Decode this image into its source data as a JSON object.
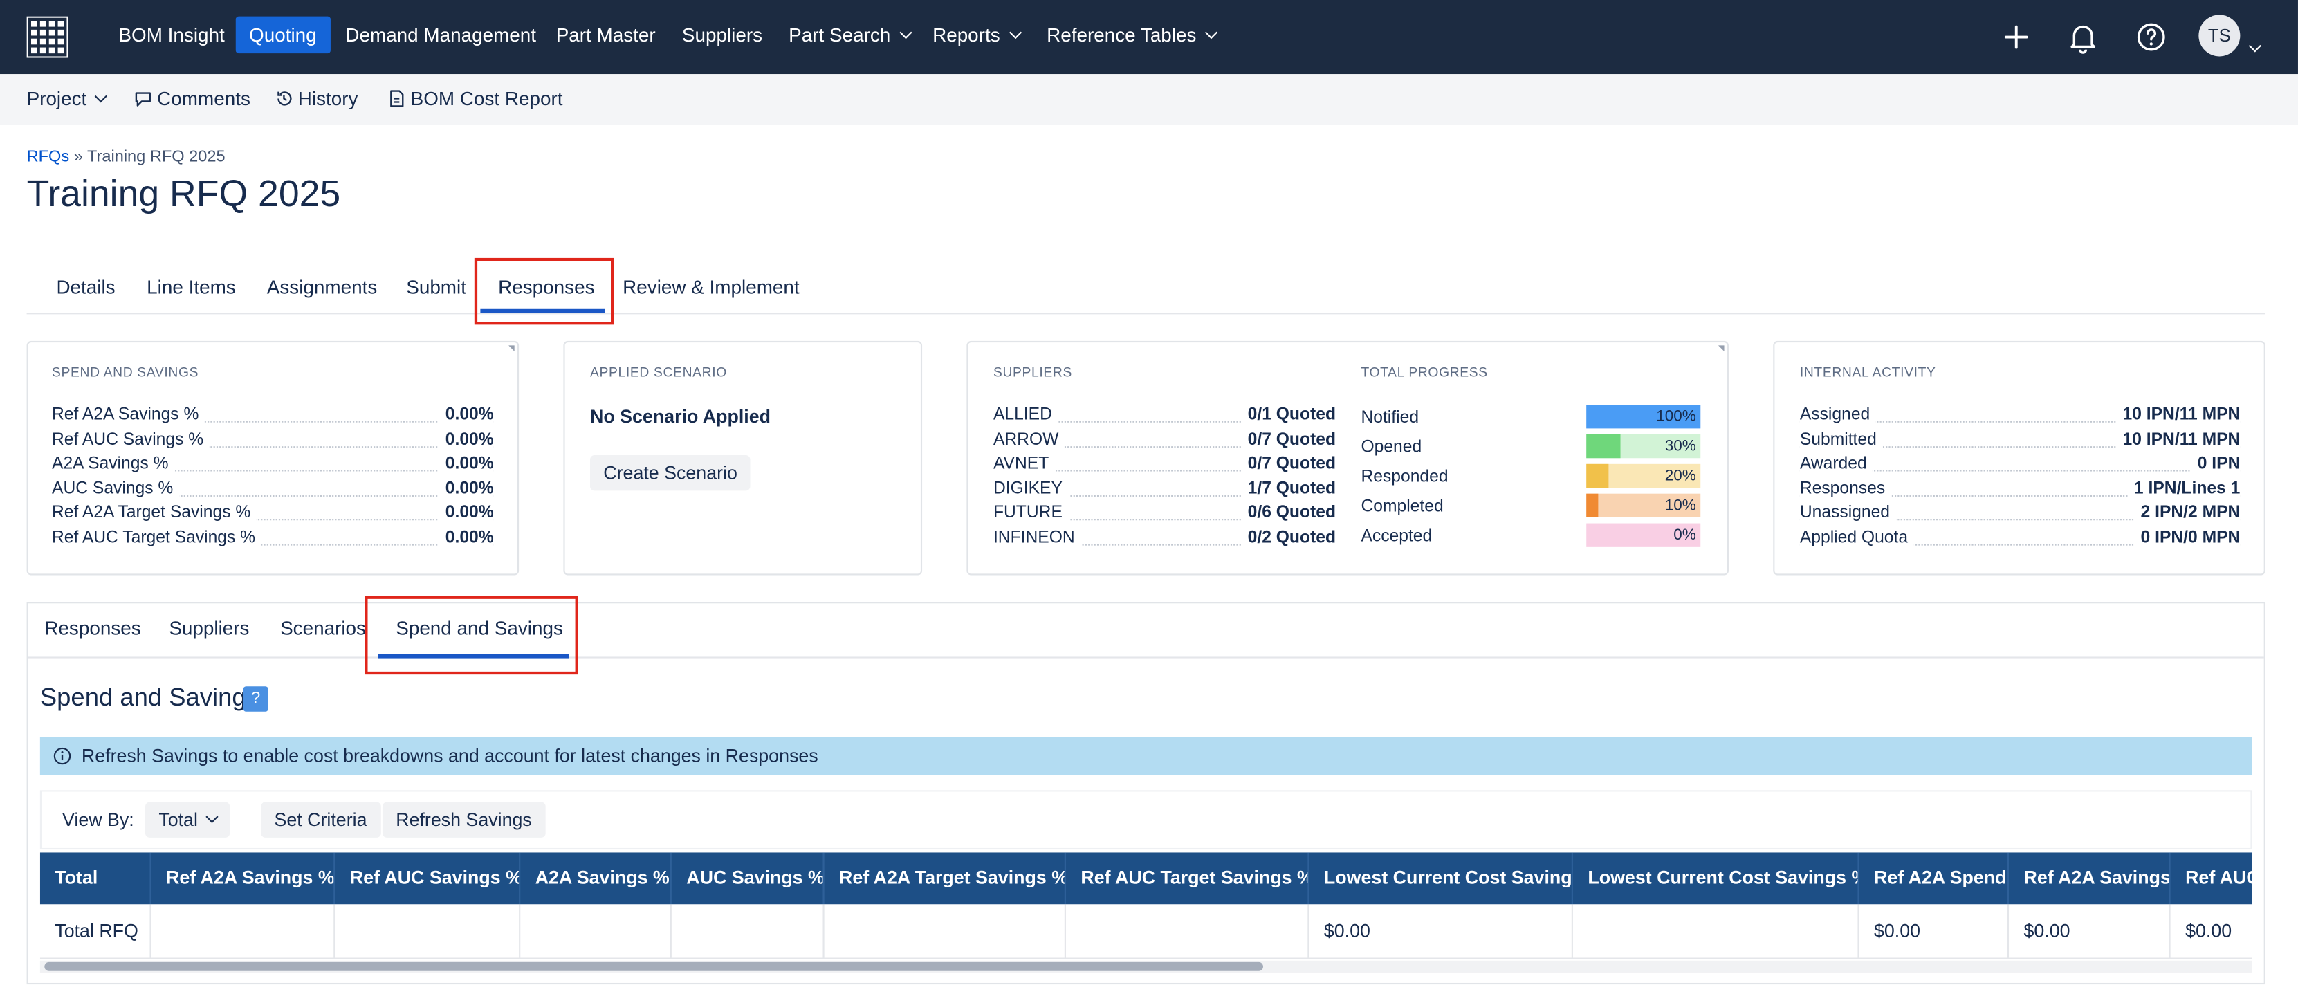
{
  "topnav": {
    "items": [
      "BOM Insight",
      "Quoting",
      "Demand Management",
      "Part Master",
      "Suppliers",
      "Part Search",
      "Reports",
      "Reference Tables"
    ],
    "active": "Quoting",
    "avatar": "TS",
    "icons": [
      "apps-grid-icon",
      "plus-icon",
      "bell-icon",
      "help-icon"
    ]
  },
  "subnav": {
    "project": "Project",
    "comments": "Comments",
    "history": "History",
    "bom_cost_report": "BOM Cost Report"
  },
  "breadcrumb": {
    "root": "RFQs",
    "sep": "»",
    "current": "Training RFQ 2025"
  },
  "page_title": "Training RFQ 2025",
  "page_tabs": [
    "Details",
    "Line Items",
    "Assignments",
    "Submit",
    "Responses",
    "Review & Implement"
  ],
  "spend": {
    "heading": "SPEND AND SAVINGS",
    "rows": [
      {
        "label": "Ref A2A Savings %",
        "value": "0.00%"
      },
      {
        "label": "Ref AUC Savings %",
        "value": "0.00%"
      },
      {
        "label": "A2A Savings %",
        "value": "0.00%"
      },
      {
        "label": "AUC Savings %",
        "value": "0.00%"
      },
      {
        "label": "Ref A2A Target Savings %",
        "value": "0.00%"
      },
      {
        "label": "Ref AUC Target Savings %",
        "value": "0.00%"
      }
    ]
  },
  "scenario": {
    "heading": "APPLIED SCENARIO",
    "status": "No Scenario Applied",
    "button": "Create Scenario"
  },
  "suppliers": {
    "heading": "SUPPLIERS",
    "rows": [
      {
        "name": "ALLIED",
        "value": "0/1 Quoted"
      },
      {
        "name": "ARROW",
        "value": "0/7 Quoted"
      },
      {
        "name": "AVNET",
        "value": "0/7 Quoted"
      },
      {
        "name": "DIGIKEY",
        "value": "1/7 Quoted"
      },
      {
        "name": "FUTURE",
        "value": "0/6 Quoted"
      },
      {
        "name": "INFINEON",
        "value": "0/2 Quoted"
      }
    ]
  },
  "progress": {
    "heading": "TOTAL PROGRESS",
    "rows": [
      {
        "label": "Notified",
        "pct": "100%",
        "value": 100,
        "color": "#4a9cf5",
        "bg": "#cfe3fb"
      },
      {
        "label": "Opened",
        "pct": "30%",
        "value": 30,
        "color": "#6fd77b",
        "bg": "#d2f3d6"
      },
      {
        "label": "Responded",
        "pct": "20%",
        "value": 20,
        "color": "#f1c14a",
        "bg": "#fae7b5"
      },
      {
        "label": "Completed",
        "pct": "10%",
        "value": 10,
        "color": "#f08a33",
        "bg": "#f9d3b1"
      },
      {
        "label": "Accepted",
        "pct": "0%",
        "value": 0,
        "color": "#f06fb6",
        "bg": "#f9cfe4"
      }
    ]
  },
  "internal": {
    "heading": "INTERNAL ACTIVITY",
    "rows": [
      {
        "label": "Assigned",
        "value": "10 IPN/11 MPN"
      },
      {
        "label": "Submitted",
        "value": "10 IPN/11 MPN"
      },
      {
        "label": "Awarded",
        "value": "0 IPN"
      },
      {
        "label": "Responses",
        "value": "1 IPN/Lines 1"
      },
      {
        "label": "Unassigned",
        "value": "2 IPN/2 MPN"
      },
      {
        "label": "Applied Quota",
        "value": "0 IPN/0 MPN"
      }
    ]
  },
  "sub_tabs": [
    "Responses",
    "Suppliers",
    "Scenarios",
    "Spend and Savings"
  ],
  "section": {
    "title": "Spend and Savings",
    "help": "?",
    "info": "Refresh Savings to enable cost breakdowns and account for latest changes in Responses",
    "view_by_label": "View By:",
    "view_by_value": "Total",
    "set_criteria": "Set Criteria",
    "refresh_savings": "Refresh Savings"
  },
  "table": {
    "columns": [
      "Total",
      "Ref A2A Savings %",
      "Ref AUC Savings %",
      "A2A Savings %",
      "AUC Savings %",
      "Ref A2A Target Savings %",
      "Ref AUC Target Savings %",
      "Lowest Current Cost Savings",
      "Lowest Current Cost Savings %",
      "Ref A2A Spend",
      "Ref A2A Savings",
      "Ref AUC"
    ],
    "rows": [
      [
        "Total RFQ",
        "",
        "",
        "",
        "",
        "",
        "",
        "$0.00",
        "",
        "$0.00",
        "$0.00",
        "$0.00"
      ]
    ]
  }
}
